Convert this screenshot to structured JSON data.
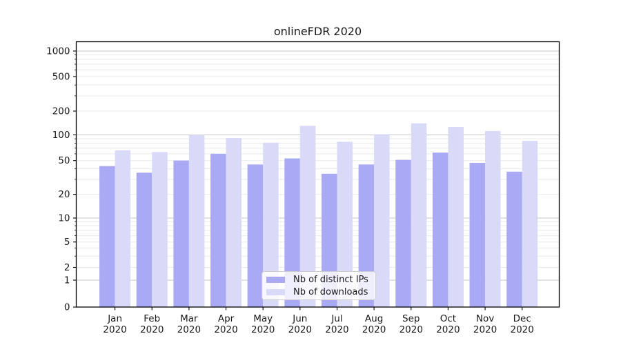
{
  "chart_data": {
    "type": "bar",
    "title": "onlineFDR 2020",
    "xlabel": "",
    "ylabel": "",
    "year": "2020",
    "categories": [
      "Jan",
      "Feb",
      "Mar",
      "Apr",
      "May",
      "Jun",
      "Jul",
      "Aug",
      "Sep",
      "Oct",
      "Nov",
      "Dec"
    ],
    "series": [
      {
        "name": "Nb of distinct IPs",
        "color": "#a9a9f4",
        "values": [
          43,
          36,
          50,
          60,
          45,
          53,
          35,
          45,
          51,
          62,
          47,
          37
        ]
      },
      {
        "name": "Nb of downloads",
        "color": "#d9d9f8",
        "values": [
          66,
          63,
          100,
          92,
          81,
          130,
          83,
          102,
          140,
          126,
          112,
          85
        ]
      }
    ],
    "y_scale": "symlog",
    "y_ticks": [
      0,
      1,
      2,
      5,
      10,
      20,
      50,
      100,
      200,
      500,
      1000
    ],
    "ylim": [
      0,
      1300
    ],
    "grid": true,
    "legend_position": "lower center"
  },
  "colors": {
    "background": "#ffffff",
    "spine": "#000000",
    "major_grid": "#c6c6c6",
    "minor_grid": "#e9e9e9",
    "text": "#1a1a1a",
    "legend_border": "#cccccc"
  }
}
